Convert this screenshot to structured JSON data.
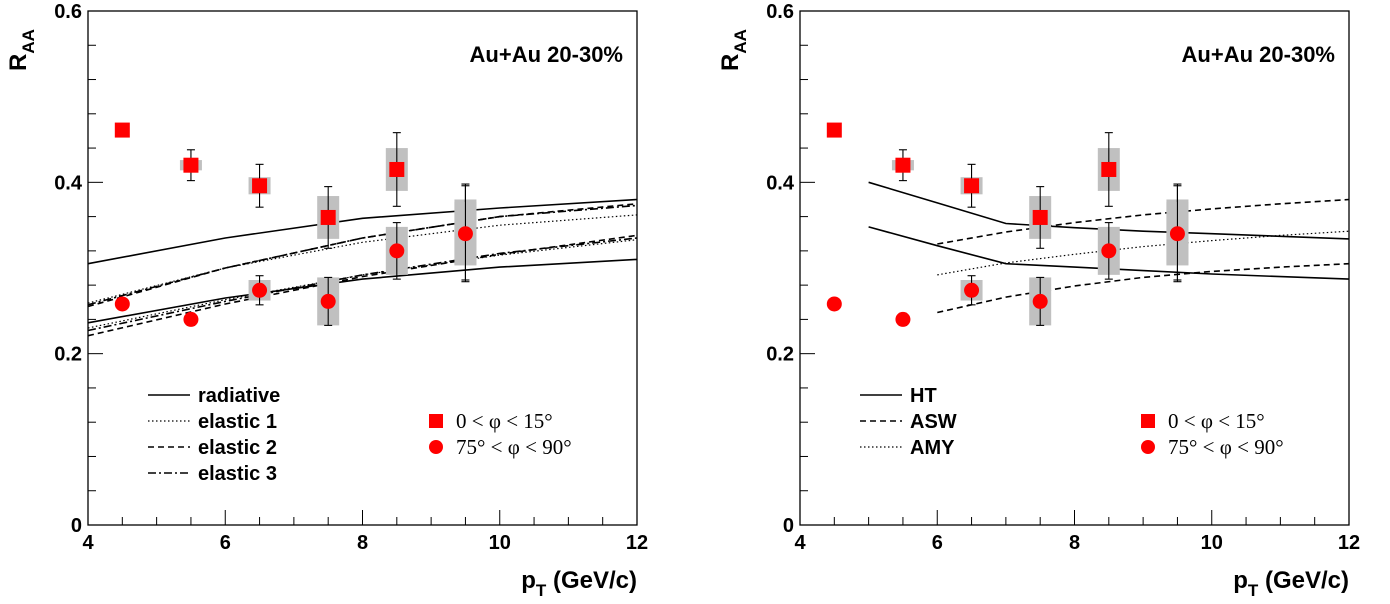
{
  "chart_data": [
    {
      "type": "scatter",
      "annotation": "Au+Au 20-30%",
      "xlabel": "p_T (GeV/c)",
      "ylabel": "R_AA",
      "xlim": [
        4,
        12
      ],
      "ylim": [
        0,
        0.6
      ],
      "xticks": [
        "4",
        "6",
        "8",
        "10",
        "12"
      ],
      "yticks": [
        "0",
        "0.2",
        "0.4",
        "0.6"
      ],
      "legend_placement": "bottom-left and bottom-right",
      "markers": [
        {
          "label": "0 < φ < 15°",
          "shape": "square",
          "color": "#ff0000",
          "points": [
            {
              "x": 4.5,
              "y": 0.461,
              "stat": 0.0,
              "sys": 0.0
            },
            {
              "x": 5.5,
              "y": 0.42,
              "stat": 0.018,
              "sys": 0.006
            },
            {
              "x": 6.5,
              "y": 0.396,
              "stat": 0.025,
              "sys": 0.01
            },
            {
              "x": 7.5,
              "y": 0.359,
              "stat": 0.036,
              "sys": 0.025
            },
            {
              "x": 8.5,
              "y": 0.415,
              "stat": 0.043,
              "sys": 0.025
            },
            {
              "x": 9.5,
              "y": 0.342,
              "stat": 0.056,
              "sys": 0.038
            }
          ]
        },
        {
          "label": "75° < φ < 90°",
          "shape": "circle",
          "color": "#ff0000",
          "points": [
            {
              "x": 4.5,
              "y": 0.258,
              "stat": 0.0,
              "sys": 0.0
            },
            {
              "x": 5.5,
              "y": 0.24,
              "stat": 0.007,
              "sys": 0.0
            },
            {
              "x": 6.5,
              "y": 0.274,
              "stat": 0.017,
              "sys": 0.012
            },
            {
              "x": 7.5,
              "y": 0.261,
              "stat": 0.028,
              "sys": 0.028
            },
            {
              "x": 8.5,
              "y": 0.32,
              "stat": 0.033,
              "sys": 0.028
            },
            {
              "x": 9.5,
              "y": 0.34,
              "stat": 0.056,
              "sys": 0.037
            }
          ]
        }
      ],
      "curves": [
        {
          "name": "radiative",
          "style": "solid",
          "x": [
            4,
            6,
            8,
            10,
            12
          ],
          "y": [
            0.305,
            0.335,
            0.358,
            0.37,
            0.38
          ]
        },
        {
          "name": "radiative",
          "style": "solid",
          "x": [
            4,
            6,
            8,
            10,
            12
          ],
          "y": [
            0.236,
            0.265,
            0.287,
            0.301,
            0.31
          ]
        },
        {
          "name": "elastic 1",
          "style": "dotted",
          "x": [
            4,
            6,
            8,
            10,
            12
          ],
          "y": [
            0.259,
            0.3,
            0.33,
            0.35,
            0.362
          ]
        },
        {
          "name": "elastic 1",
          "style": "dotted",
          "x": [
            4,
            6,
            8,
            10,
            12
          ],
          "y": [
            0.23,
            0.263,
            0.292,
            0.315,
            0.333
          ]
        },
        {
          "name": "elastic 2",
          "style": "dashed",
          "x": [
            4,
            6,
            8,
            10,
            12
          ],
          "y": [
            0.255,
            0.3,
            0.335,
            0.36,
            0.375
          ]
        },
        {
          "name": "elastic 2",
          "style": "dashed",
          "x": [
            4,
            6,
            8,
            10,
            12
          ],
          "y": [
            0.221,
            0.258,
            0.29,
            0.316,
            0.338
          ]
        },
        {
          "name": "elastic 3",
          "style": "dashdot",
          "x": [
            4,
            6,
            8,
            10,
            12
          ],
          "y": [
            0.257,
            0.3,
            0.335,
            0.36,
            0.373
          ]
        },
        {
          "name": "elastic 3",
          "style": "dashdot",
          "x": [
            4,
            6,
            8,
            10,
            12
          ],
          "y": [
            0.227,
            0.261,
            0.292,
            0.317,
            0.335
          ]
        }
      ],
      "legend_lines": [
        {
          "label": "radiative",
          "style": "solid"
        },
        {
          "label": "elastic 1",
          "style": "dotted"
        },
        {
          "label": "elastic 2",
          "style": "dashed"
        },
        {
          "label": "elastic 3",
          "style": "dashdot"
        }
      ]
    },
    {
      "type": "scatter",
      "annotation": "Au+Au 20-30%",
      "xlabel": "p_T (GeV/c)",
      "ylabel": "R_AA",
      "xlim": [
        4,
        12
      ],
      "ylim": [
        0,
        0.6
      ],
      "xticks": [
        "4",
        "6",
        "8",
        "10",
        "12"
      ],
      "yticks": [
        "0",
        "0.2",
        "0.4",
        "0.6"
      ],
      "legend_placement": "bottom-left and bottom-right",
      "markers": [
        {
          "label": "0 < φ < 15°",
          "shape": "square",
          "color": "#ff0000",
          "points": [
            {
              "x": 4.5,
              "y": 0.461,
              "stat": 0.0,
              "sys": 0.0
            },
            {
              "x": 5.5,
              "y": 0.42,
              "stat": 0.018,
              "sys": 0.006
            },
            {
              "x": 6.5,
              "y": 0.396,
              "stat": 0.025,
              "sys": 0.01
            },
            {
              "x": 7.5,
              "y": 0.359,
              "stat": 0.036,
              "sys": 0.025
            },
            {
              "x": 8.5,
              "y": 0.415,
              "stat": 0.043,
              "sys": 0.025
            },
            {
              "x": 9.5,
              "y": 0.342,
              "stat": 0.056,
              "sys": 0.038
            }
          ]
        },
        {
          "label": "75° < φ < 90°",
          "shape": "circle",
          "color": "#ff0000",
          "points": [
            {
              "x": 4.5,
              "y": 0.258,
              "stat": 0.0,
              "sys": 0.0
            },
            {
              "x": 5.5,
              "y": 0.24,
              "stat": 0.007,
              "sys": 0.0
            },
            {
              "x": 6.5,
              "y": 0.274,
              "stat": 0.017,
              "sys": 0.012
            },
            {
              "x": 7.5,
              "y": 0.261,
              "stat": 0.028,
              "sys": 0.028
            },
            {
              "x": 8.5,
              "y": 0.32,
              "stat": 0.033,
              "sys": 0.028
            },
            {
              "x": 9.5,
              "y": 0.34,
              "stat": 0.056,
              "sys": 0.037
            }
          ]
        }
      ],
      "curves": [
        {
          "name": "HT",
          "style": "solid",
          "x": [
            5,
            6,
            7,
            8,
            9,
            10,
            11,
            12
          ],
          "y": [
            0.4,
            0.376,
            0.352,
            0.347,
            0.343,
            0.34,
            0.337,
            0.334
          ]
        },
        {
          "name": "HT",
          "style": "solid",
          "x": [
            5,
            6,
            7,
            8,
            9,
            10,
            11,
            12
          ],
          "y": [
            0.348,
            0.326,
            0.305,
            0.301,
            0.297,
            0.293,
            0.29,
            0.287
          ]
        },
        {
          "name": "ASW",
          "style": "dashed",
          "x": [
            6,
            7,
            8,
            9,
            10,
            11,
            12
          ],
          "y": [
            0.328,
            0.342,
            0.353,
            0.362,
            0.369,
            0.375,
            0.38
          ]
        },
        {
          "name": "ASW",
          "style": "dashed",
          "x": [
            6,
            7,
            8,
            9,
            10,
            11,
            12
          ],
          "y": [
            0.248,
            0.266,
            0.279,
            0.289,
            0.296,
            0.301,
            0.305
          ]
        },
        {
          "name": "AMY",
          "style": "dotted",
          "x": [
            6,
            7,
            8,
            9,
            10,
            11,
            12
          ],
          "y": [
            0.292,
            0.306,
            0.316,
            0.325,
            0.332,
            0.338,
            0.343
          ]
        }
      ],
      "legend_lines": [
        {
          "label": "HT",
          "style": "solid"
        },
        {
          "label": "ASW",
          "style": "dashed"
        },
        {
          "label": "AMY",
          "style": "dotted"
        }
      ]
    }
  ]
}
